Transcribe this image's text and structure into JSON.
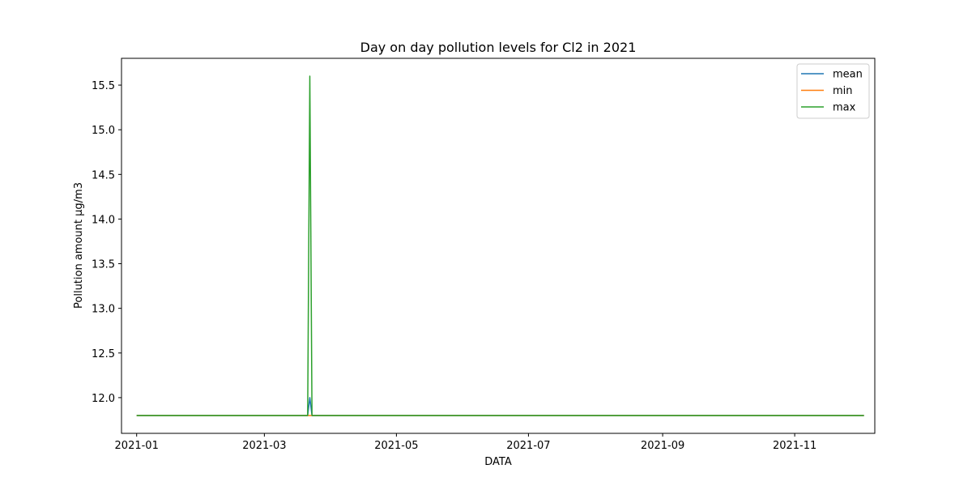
{
  "chart_data": {
    "type": "line",
    "title": "Day on day pollution levels for Cl2 in 2021",
    "xlabel": "DATA",
    "ylabel": "Pollution amount µg/m3",
    "xlim": [
      "2020-12-25",
      "2021-12-08"
    ],
    "ylim": [
      11.6,
      15.8
    ],
    "x_ticks": [
      "2021-01",
      "2021-03",
      "2021-05",
      "2021-07",
      "2021-09",
      "2021-11"
    ],
    "y_ticks": [
      "12.0",
      "12.5",
      "13.0",
      "13.5",
      "14.0",
      "14.5",
      "15.0",
      "15.5"
    ],
    "grid": false,
    "legend_position": "top-right",
    "series": [
      {
        "name": "mean",
        "color": "#1f77b4",
        "points": [
          [
            "2021-01-01",
            11.8
          ],
          [
            "2021-03-21",
            11.8
          ],
          [
            "2021-03-22",
            12.0
          ],
          [
            "2021-03-23",
            11.8
          ],
          [
            "2021-12-03",
            11.8
          ]
        ]
      },
      {
        "name": "min",
        "color": "#ff7f0e",
        "points": [
          [
            "2021-01-01",
            11.8
          ],
          [
            "2021-12-03",
            11.8
          ]
        ]
      },
      {
        "name": "max",
        "color": "#2ca02c",
        "points": [
          [
            "2021-01-01",
            11.8
          ],
          [
            "2021-03-21",
            11.8
          ],
          [
            "2021-03-22",
            15.6
          ],
          [
            "2021-03-23",
            11.8
          ],
          [
            "2021-12-03",
            11.8
          ]
        ]
      }
    ]
  }
}
